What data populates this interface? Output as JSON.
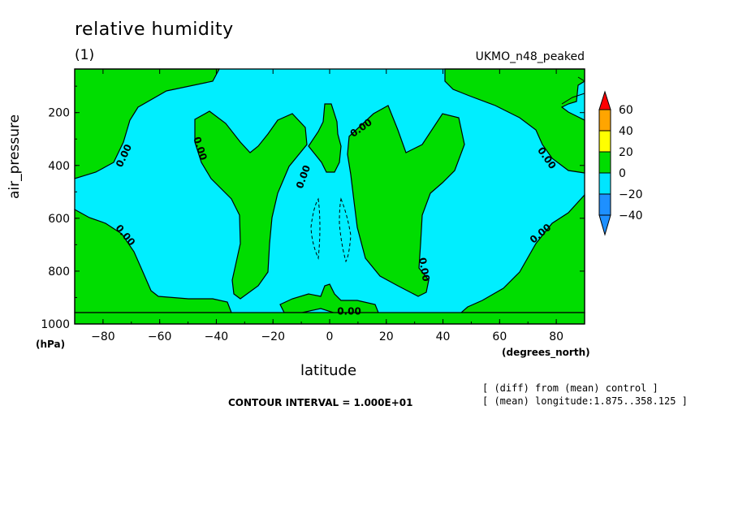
{
  "header": {
    "title": "relative humidity",
    "panel": "(1)",
    "dataset": "UKMO_n48_peaked"
  },
  "footer": {
    "contour_interval": "CONTOUR INTERVAL = 1.000E+01",
    "note_diff": "[ (diff) from (mean) control ]",
    "note_mean": "[ (mean) longitude:1.875..358.125 ]"
  },
  "chart_data": {
    "type": "contour",
    "title": "relative humidity",
    "xlabel": "latitude",
    "xunit": "(degrees_north)",
    "ylabel": "air_pressure",
    "yunit": "(hPa)",
    "xlim": [
      -90,
      90
    ],
    "ylim": [
      1000,
      0
    ],
    "x_ticks": [
      -80,
      -60,
      -40,
      -20,
      0,
      20,
      40,
      60,
      80
    ],
    "x_tick_labels": [
      "−80",
      "−60",
      "−40",
      "−20",
      "0",
      "20",
      "40",
      "60",
      "80"
    ],
    "y_ticks": [
      200,
      400,
      600,
      800,
      1000
    ],
    "y_tick_labels": [
      "200",
      "400",
      "600",
      "800",
      "1000"
    ],
    "contour_interval": 10,
    "contour_labels": [
      "0.00",
      "0.00",
      "0.00",
      "0.00",
      "0.00",
      "0.00",
      "0.00",
      "0.00",
      "0.00",
      "0.00"
    ],
    "colorbar": {
      "levels": [
        -40,
        -20,
        0,
        20,
        40,
        60
      ],
      "level_labels": [
        "−40",
        "−20",
        "0",
        "20",
        "40",
        "60"
      ],
      "colors": [
        "#1e90ff",
        "#00e5ff",
        "#00dd00",
        "#ffff00",
        "#ffa500",
        "#ff0000"
      ]
    },
    "regions": {
      "positive_color": "#00dd00",
      "negative_color": "#00eeff",
      "positive_label": "0 to 20",
      "negative_label": "-20 to 0"
    },
    "grid": false
  }
}
